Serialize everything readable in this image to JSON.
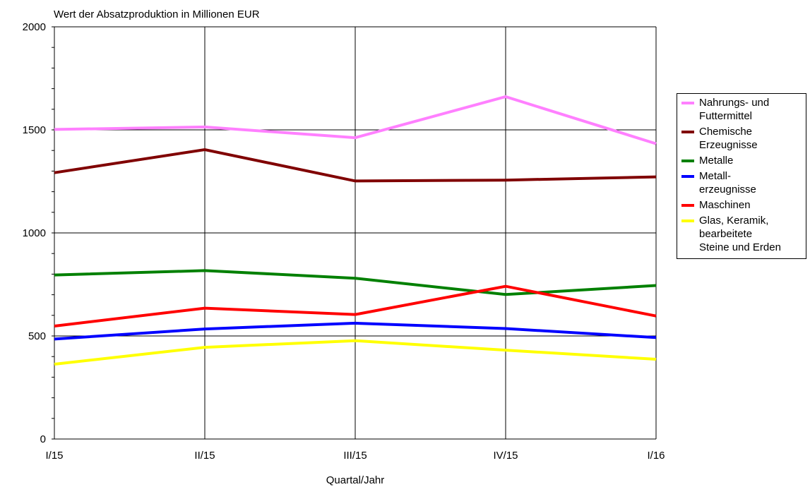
{
  "chart_data": {
    "type": "line",
    "title": "Wert der Absatzproduktion in Millionen EUR",
    "xlabel": "Quartal/Jahr",
    "ylabel": "",
    "categories": [
      "I/15",
      "II/15",
      "III/15",
      "IV/15",
      "I/16"
    ],
    "ylim": [
      0,
      2000
    ],
    "yticks": [
      "0",
      "500",
      "1000",
      "1500",
      "2000"
    ],
    "grid": true,
    "legend_position": "right",
    "series": [
      {
        "name": "Nahrungs- und\nFuttermittel",
        "color": "#ff80ff",
        "values": [
          1502,
          1514,
          1462,
          1661,
          1433
        ]
      },
      {
        "name": "Chemische\nErzeugnisse",
        "color": "#800000",
        "values": [
          1292,
          1404,
          1252,
          1256,
          1272
        ]
      },
      {
        "name": "Metalle",
        "color": "#008000",
        "values": [
          796,
          817,
          780,
          701,
          745
        ]
      },
      {
        "name": "Metall-\nerzeugnisse",
        "color": "#0000ff",
        "values": [
          485,
          534,
          562,
          536,
          492
        ]
      },
      {
        "name": "Maschinen",
        "color": "#ff0000",
        "values": [
          548,
          635,
          604,
          741,
          597
        ]
      },
      {
        "name": "Glas, Keramik,\nbearbeitete\nSteine und Erden",
        "color": "#ffff00",
        "values": [
          363,
          445,
          477,
          431,
          387
        ]
      }
    ]
  }
}
